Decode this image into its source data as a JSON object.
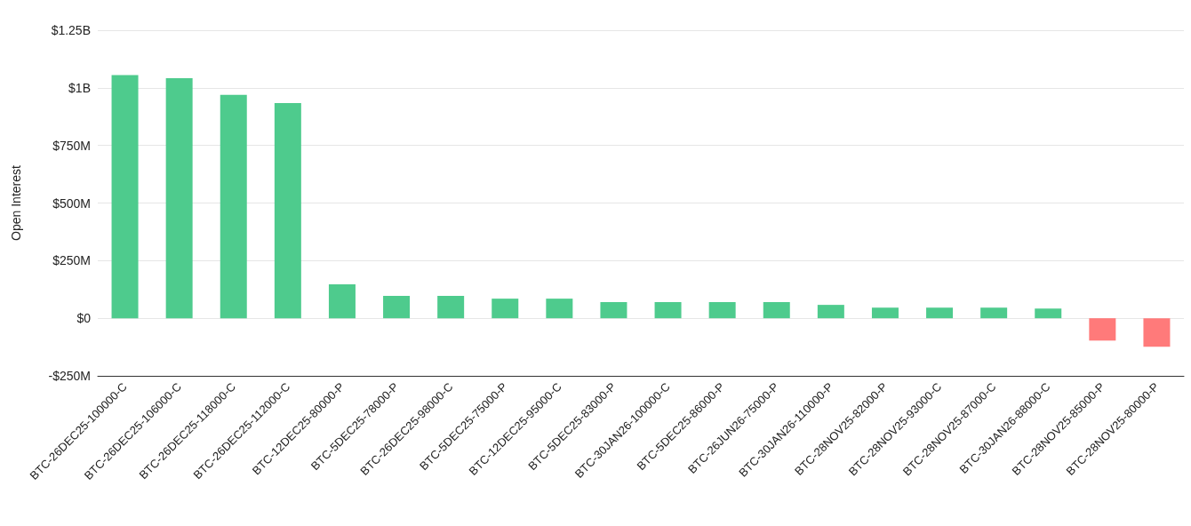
{
  "chart_data": {
    "type": "bar",
    "ylabel": "Open Interest",
    "categories": [
      "BTC-26DEC25-100000-C",
      "BTC-26DEC25-106000-C",
      "BTC-26DEC25-118000-C",
      "BTC-26DEC25-112000-C",
      "BTC-12DEC25-80000-P",
      "BTC-5DEC25-78000-P",
      "BTC-26DEC25-98000-C",
      "BTC-5DEC25-75000-P",
      "BTC-12DEC25-95000-C",
      "BTC-5DEC25-83000-P",
      "BTC-30JAN26-100000-C",
      "BTC-5DEC25-86000-P",
      "BTC-26JUN26-75000-P",
      "BTC-30JAN26-110000-P",
      "BTC-28NOV25-82000-P",
      "BTC-28NOV25-93000-C",
      "BTC-28NOV25-87000-C",
      "BTC-30JAN26-88000-C",
      "BTC-28NOV25-85000-P",
      "BTC-28NOV25-80000-P"
    ],
    "values": [
      1055000000,
      1042000000,
      969000000,
      934000000,
      147000000,
      97000000,
      97000000,
      85000000,
      85000000,
      70000000,
      70000000,
      70000000,
      70000000,
      58000000,
      46000000,
      46000000,
      46000000,
      42000000,
      -97000000,
      -124000000
    ],
    "colors": [
      "#4ecb8d",
      "#4ecb8d",
      "#4ecb8d",
      "#4ecb8d",
      "#4ecb8d",
      "#4ecb8d",
      "#4ecb8d",
      "#4ecb8d",
      "#4ecb8d",
      "#4ecb8d",
      "#4ecb8d",
      "#4ecb8d",
      "#4ecb8d",
      "#4ecb8d",
      "#4ecb8d",
      "#4ecb8d",
      "#4ecb8d",
      "#4ecb8d",
      "#ff7a7a",
      "#ff7a7a"
    ],
    "ylim": [
      -250000000,
      1250000000
    ],
    "yticks": [
      {
        "value": -250000000,
        "label": "-$250M"
      },
      {
        "value": 0,
        "label": "$0"
      },
      {
        "value": 250000000,
        "label": "$250M"
      },
      {
        "value": 500000000,
        "label": "$500M"
      },
      {
        "value": 750000000,
        "label": "$750M"
      },
      {
        "value": 1000000000,
        "label": "$1B"
      },
      {
        "value": 1250000000,
        "label": "$1.25B"
      }
    ],
    "grid": "y"
  }
}
